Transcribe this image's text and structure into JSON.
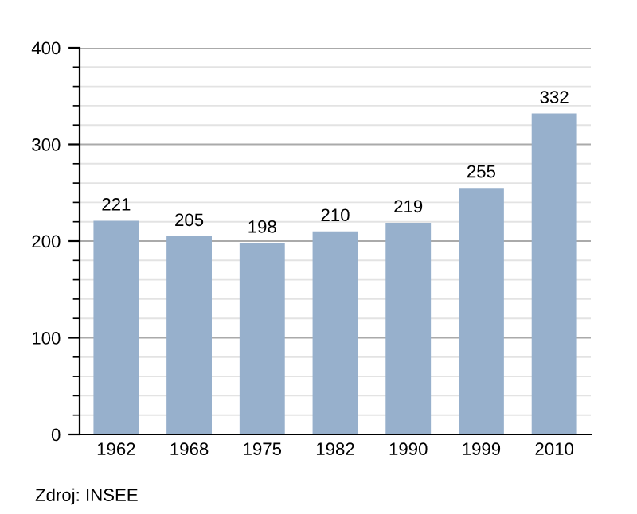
{
  "chart_data": {
    "type": "bar",
    "categories": [
      "1962",
      "1968",
      "1975",
      "1982",
      "1990",
      "1999",
      "2010"
    ],
    "values": [
      221,
      205,
      198,
      210,
      219,
      255,
      332
    ],
    "color": "#97b0cc",
    "ylim": [
      0,
      400
    ],
    "yticks": [
      0,
      100,
      200,
      300,
      400
    ],
    "grid": "y",
    "data_labels": true,
    "annotations": [
      "Zdroj: INSEE"
    ]
  }
}
